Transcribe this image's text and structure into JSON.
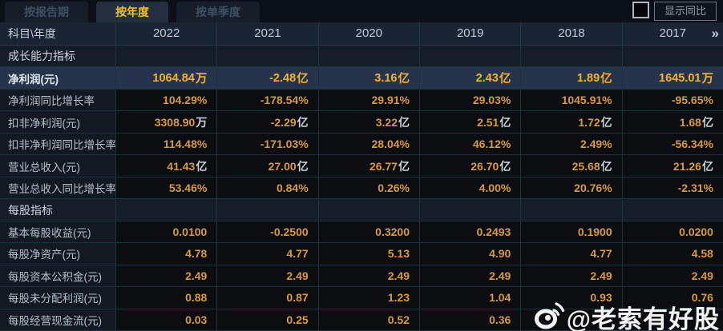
{
  "tabs": [
    {
      "label": "按报告期",
      "active": false
    },
    {
      "label": "按年度",
      "active": true
    },
    {
      "label": "按单季度",
      "active": false
    }
  ],
  "controls": {
    "show_yoy_label": "显示同比",
    "checkbox_checked": false
  },
  "table": {
    "corner_label": "科目\\年度",
    "years": [
      "2022",
      "2021",
      "2020",
      "2019",
      "2018",
      "2017"
    ],
    "more_icon": "»",
    "rows": [
      {
        "type": "section",
        "label": "成长能力指标",
        "values": [
          "",
          "",
          "",
          "",
          "",
          ""
        ]
      },
      {
        "type": "data",
        "highlight": true,
        "label": "净利润(元)",
        "values": [
          "1064.84万",
          "-2.48亿",
          "3.16亿",
          "2.43亿",
          "1.89亿",
          "1645.01万"
        ]
      },
      {
        "type": "data",
        "label": "净利润同比增长率",
        "values": [
          "104.29%",
          "-178.54%",
          "29.91%",
          "29.03%",
          "1045.91%",
          "-95.65%"
        ]
      },
      {
        "type": "data",
        "label": "扣非净利润(元)",
        "values": [
          "3308.90万",
          "-2.29亿",
          "3.22亿",
          "2.51亿",
          "1.72亿",
          "1.68亿"
        ]
      },
      {
        "type": "data",
        "label": "扣非净利润同比增长率",
        "values": [
          "114.48%",
          "-171.03%",
          "28.04%",
          "46.12%",
          "2.49%",
          "-56.34%"
        ]
      },
      {
        "type": "data",
        "label": "营业总收入(元)",
        "values": [
          "41.43亿",
          "27.00亿",
          "26.77亿",
          "26.70亿",
          "25.68亿",
          "21.26亿"
        ]
      },
      {
        "type": "data",
        "label": "营业总收入同比增长率",
        "values": [
          "53.46%",
          "0.84%",
          "0.26%",
          "4.00%",
          "20.76%",
          "-2.31%"
        ]
      },
      {
        "type": "section",
        "label": "每股指标",
        "values": [
          "",
          "",
          "",
          "",
          "",
          ""
        ]
      },
      {
        "type": "data",
        "label": "基本每股收益(元)",
        "values": [
          "0.0100",
          "-0.2500",
          "0.3200",
          "0.2493",
          "0.1900",
          "0.0200"
        ]
      },
      {
        "type": "data",
        "label": "每股净资产(元)",
        "values": [
          "4.78",
          "4.77",
          "5.13",
          "4.90",
          "4.77",
          "4.58"
        ]
      },
      {
        "type": "data",
        "label": "每股资本公积金(元)",
        "values": [
          "2.49",
          "2.49",
          "2.49",
          "2.49",
          "2.49",
          "2.49"
        ]
      },
      {
        "type": "data",
        "label": "每股未分配利润(元)",
        "values": [
          "0.88",
          "0.87",
          "1.23",
          "1.04",
          "0.93",
          "0.76"
        ]
      },
      {
        "type": "data",
        "label": "每股经营现金流(元)",
        "values": [
          "0.03",
          "0.25",
          "0.52",
          "0.36",
          "",
          ""
        ]
      }
    ]
  },
  "watermark": {
    "text": "@老索有好股",
    "icon": "weibo-icon"
  },
  "colors": {
    "accent_gold": "#f5c028",
    "value_orange": "#d89a45",
    "highlight_row_bg": "#26344b",
    "highlight_value": "#f4b13a",
    "grid_line": "#1c333d",
    "header_bg": "#1a2432",
    "watermark_white": "#ffffff"
  }
}
